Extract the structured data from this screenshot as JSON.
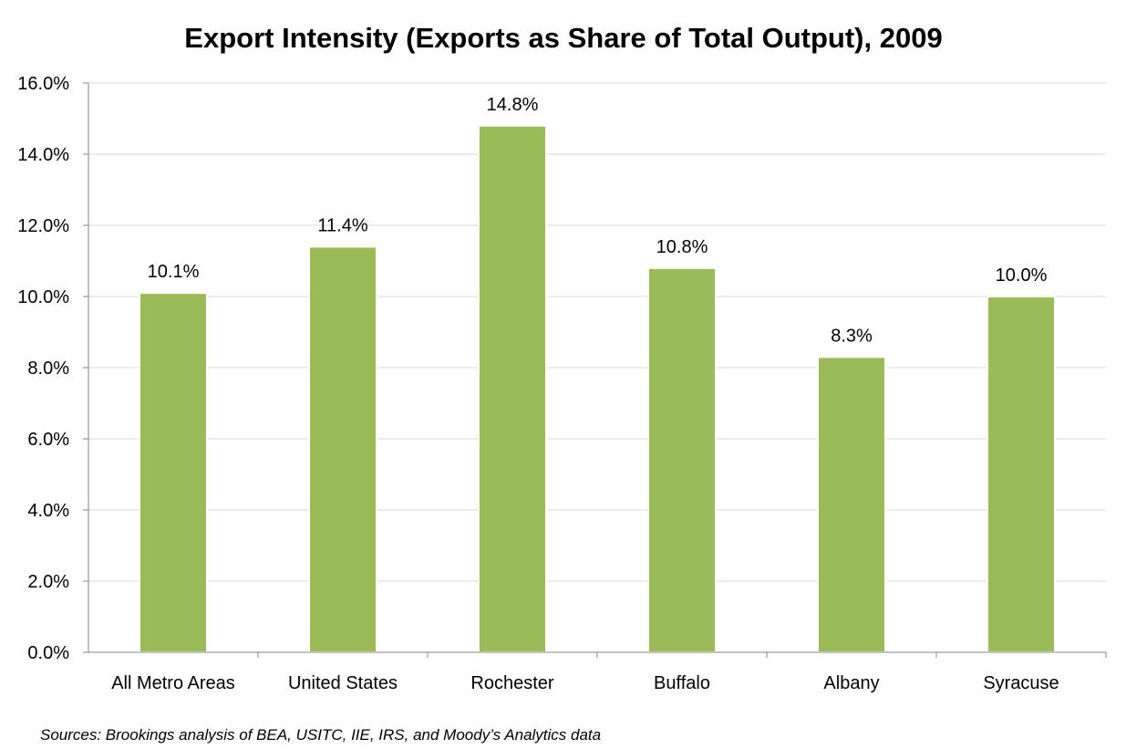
{
  "chart_data": {
    "type": "bar",
    "title": "Export Intensity (Exports as Share of Total Output), 2009",
    "categories": [
      "All Metro Areas",
      "United States",
      "Rochester",
      "Buffalo",
      "Albany",
      "Syracuse"
    ],
    "values": [
      10.1,
      11.4,
      14.8,
      10.8,
      8.3,
      10.0
    ],
    "data_labels": [
      "10.1%",
      "11.4%",
      "14.8%",
      "10.8%",
      "8.3%",
      "10.0%"
    ],
    "y_tick_labels": [
      "0.0%",
      "2.0%",
      "4.0%",
      "6.0%",
      "8.0%",
      "10.0%",
      "12.0%",
      "14.0%",
      "16.0%"
    ],
    "ylim": [
      0,
      16
    ],
    "xlabel": "",
    "ylabel": "",
    "grid": true,
    "bar_color": "#9bbb59",
    "source": "Sources: Brookings analysis of BEA, USITC, IIE, IRS, and Moody’s Analytics data"
  }
}
